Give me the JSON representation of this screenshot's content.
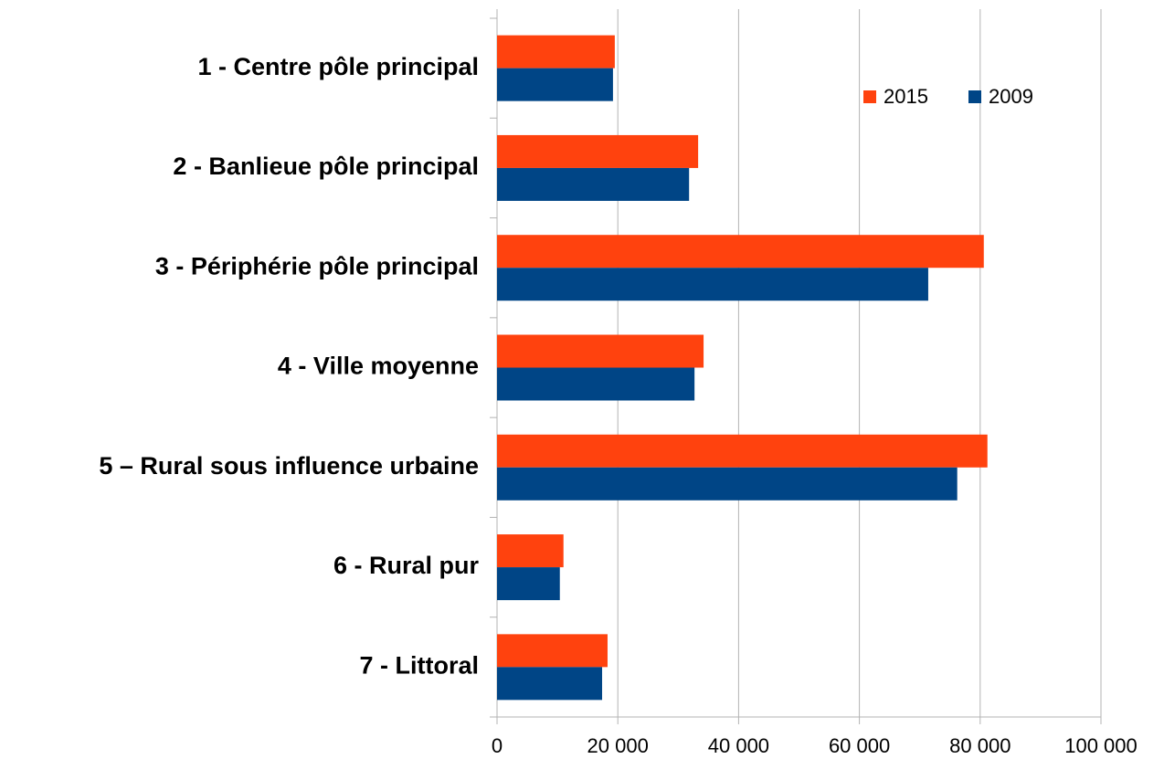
{
  "chart_data": {
    "type": "bar",
    "orientation": "horizontal",
    "categories": [
      "1 - Centre pôle principal",
      "2 - Banlieue pôle principal",
      "3 - Périphérie pôle principal",
      "4 - Ville moyenne",
      "5 – Rural sous influence urbaine",
      "6 - Rural pur",
      "7 - Littoral"
    ],
    "series": [
      {
        "name": "2015",
        "color": "#ff420e",
        "values": [
          19500,
          33300,
          80600,
          34200,
          81200,
          11000,
          18300
        ]
      },
      {
        "name": "2009",
        "color": "#004586",
        "values": [
          19200,
          31800,
          71400,
          32700,
          76200,
          10400,
          17400
        ]
      }
    ],
    "xlim": [
      0,
      100000
    ],
    "xticks": [
      0,
      {
        "value": 20000,
        "label": "20 000"
      },
      {
        "value": 40000,
        "label": "40 000"
      },
      {
        "value": 60000,
        "label": "60 000"
      },
      {
        "value": 80000,
        "label": "80 000"
      },
      {
        "value": 100000,
        "label": "100 000"
      }
    ],
    "grid": true,
    "legend": "top-right"
  }
}
